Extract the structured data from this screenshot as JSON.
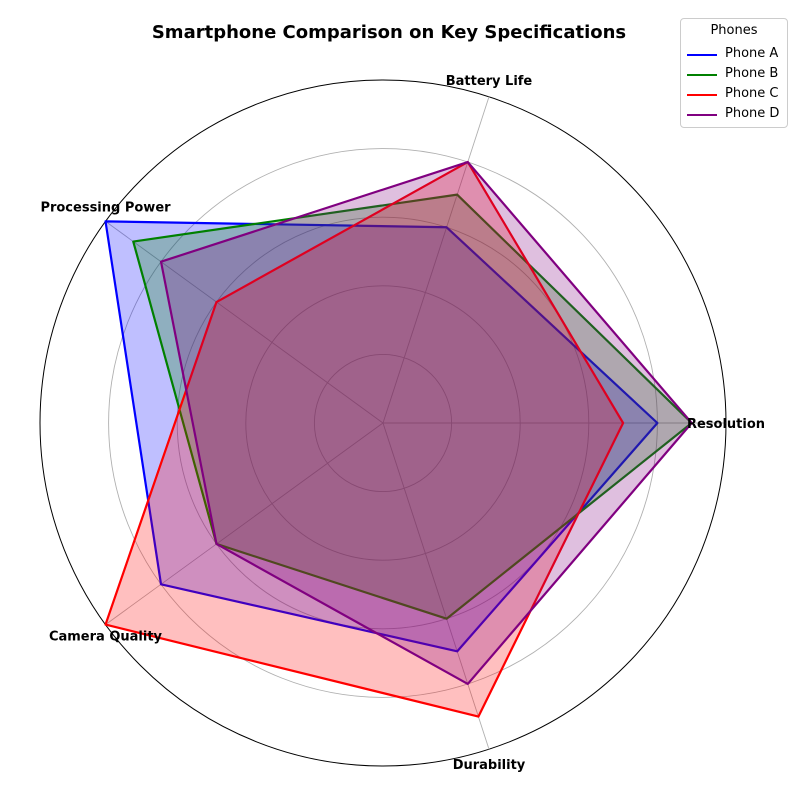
{
  "chart_data": {
    "type": "radar",
    "title": "Smartphone Comparison on Key Specifications",
    "categories": [
      "Resolution",
      "Battery Life",
      "Processing Power",
      "Camera Quality",
      "Durability"
    ],
    "rmax": 10,
    "rticks": [
      2,
      4,
      6,
      8,
      10
    ],
    "grid": true,
    "legend": {
      "title": "Phones",
      "placement": "top-right"
    },
    "series": [
      {
        "name": "Phone A",
        "color": "#0000ff",
        "values": [
          8,
          6,
          10,
          8,
          7
        ]
      },
      {
        "name": "Phone B",
        "color": "#008000",
        "values": [
          9,
          7,
          9,
          6,
          6
        ]
      },
      {
        "name": "Phone C",
        "color": "#ff0000",
        "values": [
          7,
          8,
          6,
          10,
          9
        ]
      },
      {
        "name": "Phone D",
        "color": "#800080",
        "values": [
          9,
          8,
          8,
          6,
          8
        ]
      }
    ]
  }
}
